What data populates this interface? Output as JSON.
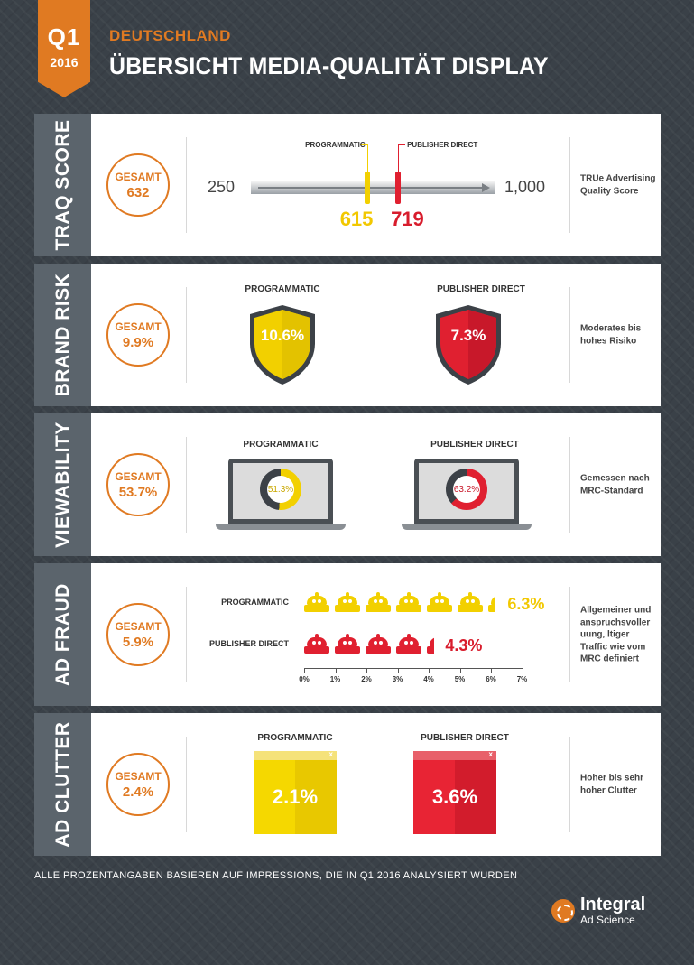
{
  "header": {
    "quarter": "Q1",
    "year": "2016",
    "country": "DEUTSCHLAND",
    "title": "ÜBERSICHT MEDIA-QUALITÄT DISPLAY"
  },
  "colors": {
    "accent": "#e07a22",
    "programmatic": "#f2d000",
    "publisher_direct": "#e02030",
    "panel_side": "#5b646c"
  },
  "traq": {
    "section": "TRAQ SCORE",
    "gesamt_label": "GESAMT",
    "gesamt_value": "632",
    "min_label": "250",
    "max_label": "1,000",
    "min": 250,
    "max": 1000,
    "programmatic_label": "PROGRAMMATIC",
    "programmatic_value": "615",
    "programmatic_score": 615,
    "publisher_label": "PUBLISHER DIRECT",
    "publisher_value": "719",
    "publisher_score": 719,
    "note": "TRUe Advertising Quality Score"
  },
  "brand": {
    "section": "BRAND RISK",
    "gesamt_label": "GESAMT",
    "gesamt_value": "9.9%",
    "programmatic_label": "PROGRAMMATIC",
    "programmatic_value": "10.6%",
    "publisher_label": "PUBLISHER DIRECT",
    "publisher_value": "7.3%",
    "note": "Moderates bis hohes Risiko"
  },
  "view": {
    "section": "VIEWABILITY",
    "gesamt_label": "GESAMT",
    "gesamt_value": "53.7%",
    "programmatic_label": "PROGRAMMATIC",
    "programmatic_value": "51.3%",
    "programmatic_pct": 51.3,
    "publisher_label": "PUBLISHER DIRECT",
    "publisher_value": "63.2%",
    "publisher_pct": 63.2,
    "note": "Gemessen nach MRC-Standard"
  },
  "fraud": {
    "section": "AD FRAUD",
    "gesamt_label": "GESAMT",
    "gesamt_value": "5.9%",
    "programmatic_label": "PROGRAMMATIC",
    "programmatic_value": "6.3%",
    "programmatic_pct": 6.3,
    "publisher_label": "PUBLISHER DIRECT",
    "publisher_value": "4.3%",
    "publisher_pct": 4.3,
    "axis": [
      "0%",
      "1%",
      "2%",
      "3%",
      "4%",
      "5%",
      "6%",
      "7%"
    ],
    "note": "Allgemeiner und anspruchsvoller uung, ltiger Traffic wie vom MRC definiert"
  },
  "clutter": {
    "section": "AD CLUTTER",
    "gesamt_label": "GESAMT",
    "gesamt_value": "2.4%",
    "programmatic_label": "PROGRAMMATIC",
    "programmatic_value": "2.1%",
    "publisher_label": "PUBLISHER DIRECT",
    "publisher_value": "3.6%",
    "close_glyph": "x",
    "note": "Hoher bis sehr hoher Clutter"
  },
  "footer": {
    "text": "ALLE PROZENTANGABEN BASIEREN AUF IMPRESSIONS, DIE IN Q1 2016 ANALYSIERT WURDEN"
  },
  "logo": {
    "name": "Integral",
    "sub": "Ad Science"
  }
}
